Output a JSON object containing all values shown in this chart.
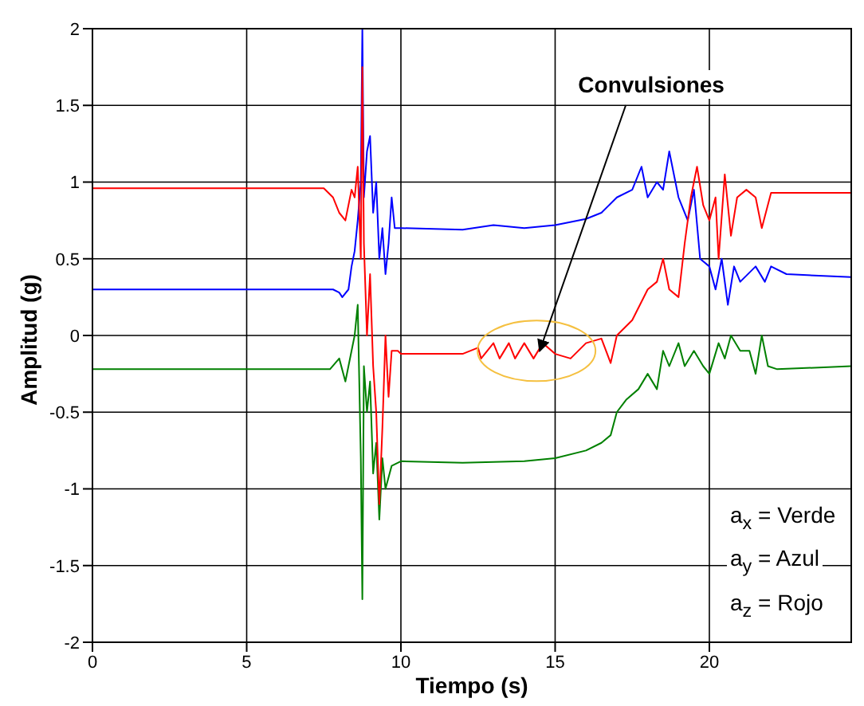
{
  "chart_data": {
    "type": "line",
    "xlabel": "Tiempo (s)",
    "ylabel": "Amplitud (g)",
    "xlim": [
      0,
      24.6
    ],
    "xticks": [
      0,
      5,
      10,
      15,
      20
    ],
    "ylim": [
      -2,
      2
    ],
    "yticks": [
      -2,
      -1.5,
      -1,
      -0.5,
      0,
      0.5,
      1,
      1.5,
      2
    ],
    "grid": true,
    "marker": "none",
    "line_style": "solid",
    "annotations": [
      {
        "text": "Convulsiones",
        "x": 14.5,
        "y": -0.1
      },
      "a$_{x}$ = Verde",
      "a$_{y}$ = Azul",
      "a$_{z}$ = Rojo"
    ],
    "series": [
      {
        "color": "#ff0000",
        "x": [
          0,
          7.5,
          7.8,
          8.0,
          8.2,
          8.4,
          8.5,
          8.6,
          8.7,
          8.75,
          8.8,
          8.9,
          9.0,
          9.1,
          9.2,
          9.3,
          9.4,
          9.5,
          9.6,
          9.7,
          9.9,
          10,
          12,
          12.5,
          12.6,
          13,
          13.2,
          13.5,
          13.7,
          14,
          14.3,
          14.6,
          15,
          15.5,
          16,
          16.5,
          16.8,
          17,
          17.5,
          18,
          18.3,
          18.5,
          18.7,
          19,
          19.2,
          19.4,
          19.6,
          19.8,
          20,
          20.2,
          20.3,
          20.5,
          20.7,
          20.9,
          21.2,
          21.5,
          21.7,
          22,
          24.6
        ],
        "values": [
          0.96,
          0.96,
          0.9,
          0.8,
          0.75,
          0.95,
          0.9,
          1.1,
          0.5,
          1.75,
          0.6,
          0.0,
          0.4,
          -0.2,
          -0.5,
          -1.1,
          -0.6,
          0.0,
          -0.4,
          -0.1,
          -0.1,
          -0.12,
          -0.12,
          -0.08,
          -0.15,
          -0.05,
          -0.15,
          -0.05,
          -0.15,
          -0.05,
          -0.15,
          -0.05,
          -0.12,
          -0.15,
          -0.05,
          -0.02,
          -0.18,
          0.0,
          0.1,
          0.3,
          0.35,
          0.5,
          0.3,
          0.25,
          0.6,
          0.9,
          1.1,
          0.85,
          0.75,
          0.9,
          0.5,
          1.05,
          0.65,
          0.9,
          0.95,
          0.9,
          0.7,
          0.93,
          0.93
        ]
      },
      {
        "color": "#0000ff",
        "x": [
          0,
          7.8,
          8.0,
          8.1,
          8.3,
          8.4,
          8.5,
          8.6,
          8.7,
          8.75,
          8.8,
          8.9,
          9.0,
          9.1,
          9.2,
          9.3,
          9.4,
          9.5,
          9.6,
          9.7,
          9.8,
          10,
          12,
          13,
          14,
          15,
          16,
          16.5,
          17,
          17.5,
          17.8,
          18,
          18.3,
          18.5,
          18.7,
          19,
          19.3,
          19.5,
          19.7,
          20,
          20.2,
          20.4,
          20.6,
          20.8,
          21,
          21.5,
          21.8,
          22,
          22.5,
          24.6
        ],
        "values": [
          0.3,
          0.3,
          0.28,
          0.25,
          0.3,
          0.45,
          0.55,
          0.75,
          1.0,
          2.0,
          0.9,
          1.2,
          1.3,
          0.8,
          1.0,
          0.5,
          0.7,
          0.4,
          0.6,
          0.9,
          0.7,
          0.7,
          0.69,
          0.72,
          0.7,
          0.72,
          0.76,
          0.8,
          0.9,
          0.95,
          1.1,
          0.9,
          1.0,
          0.95,
          1.2,
          0.9,
          0.75,
          0.95,
          0.5,
          0.45,
          0.3,
          0.5,
          0.2,
          0.45,
          0.35,
          0.45,
          0.35,
          0.45,
          0.4,
          0.38
        ]
      },
      {
        "color": "#008000",
        "x": [
          0,
          7.5,
          7.7,
          8.0,
          8.2,
          8.4,
          8.5,
          8.6,
          8.7,
          8.75,
          8.8,
          8.9,
          9.0,
          9.1,
          9.2,
          9.3,
          9.4,
          9.5,
          9.7,
          10,
          12,
          14,
          15,
          16,
          16.5,
          16.8,
          17.0,
          17.3,
          17.7,
          18,
          18.3,
          18.5,
          18.7,
          19,
          19.2,
          19.5,
          19.8,
          20,
          20.3,
          20.5,
          20.7,
          21,
          21.3,
          21.5,
          21.7,
          21.9,
          22.2,
          24.6
        ],
        "values": [
          -0.22,
          -0.22,
          -0.22,
          -0.15,
          -0.3,
          -0.1,
          0.0,
          0.2,
          -0.8,
          -1.72,
          -0.2,
          -0.5,
          -0.3,
          -0.9,
          -0.7,
          -1.2,
          -0.8,
          -1.0,
          -0.85,
          -0.82,
          -0.83,
          -0.82,
          -0.8,
          -0.75,
          -0.7,
          -0.65,
          -0.5,
          -0.42,
          -0.35,
          -0.25,
          -0.35,
          -0.1,
          -0.2,
          -0.05,
          -0.2,
          -0.1,
          -0.2,
          -0.25,
          -0.05,
          -0.15,
          0.0,
          -0.1,
          -0.1,
          -0.25,
          0.0,
          -0.2,
          -0.22,
          -0.2
        ]
      }
    ]
  }
}
